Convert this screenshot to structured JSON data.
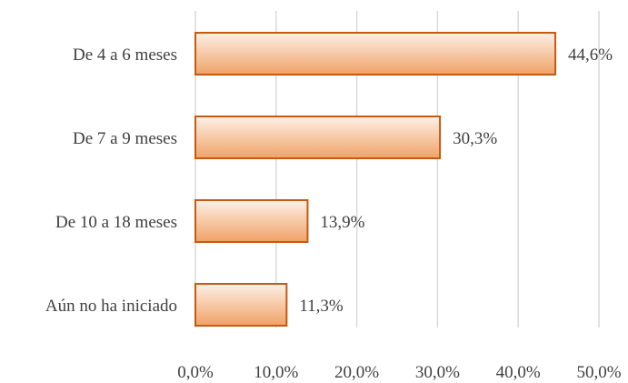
{
  "chart_data": {
    "type": "bar",
    "orientation": "horizontal",
    "categories": [
      "De 4 a 6 meses",
      "De 7 a 9 meses",
      "De 10 a 18 meses",
      "Aún no ha iniciado"
    ],
    "values": [
      44.6,
      30.3,
      13.9,
      11.3
    ],
    "value_labels": [
      "44,6%",
      "30,3%",
      "13,9%",
      "11,3%"
    ],
    "x_ticks": [
      0,
      10,
      20,
      30,
      40,
      50
    ],
    "x_tick_labels": [
      "0,0%",
      "10,0%",
      "20,0%",
      "30,0%",
      "40,0%",
      "50,0%"
    ],
    "xlim": [
      0,
      50
    ],
    "grid": "vertical",
    "legend": "none",
    "colors": {
      "bar_fill_light": "#fdf0e6",
      "bar_fill_dark": "#f0a266",
      "bar_border": "#c55a11",
      "grid": "#d9d9d9",
      "text": "#404040"
    }
  }
}
